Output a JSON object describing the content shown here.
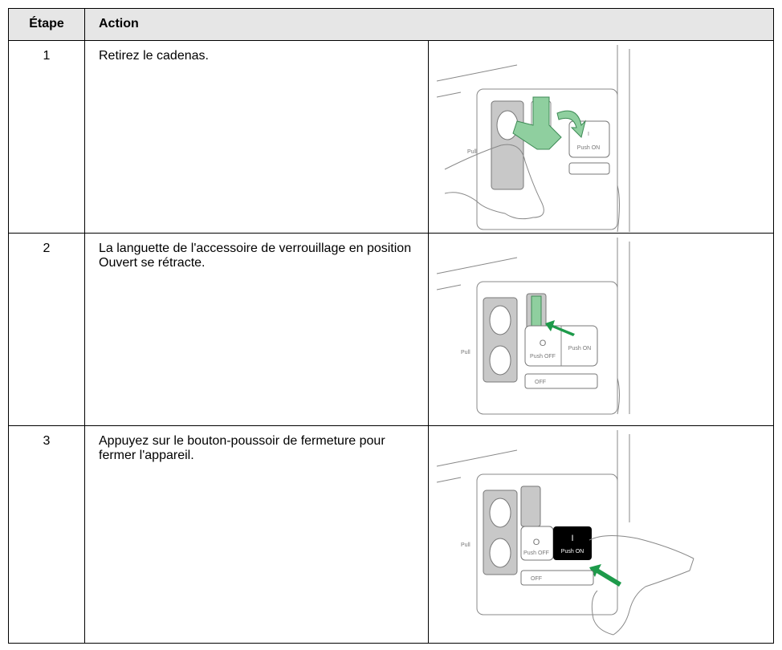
{
  "table": {
    "header": [
      "Étape",
      "Action"
    ],
    "rows": [
      [
        "1",
        "Retirez le cadenas."
      ],
      [
        "2",
        "La languette de l'accessoire de verrouillage en position Ouvert se rétracte."
      ],
      [
        "3",
        "Appuyez sur le bouton-poussoir de fermeture pour fermer l'appareil."
      ]
    ]
  },
  "illustrations": [
    {
      "labels": [
        "Pull",
        "I",
        "Push ON"
      ]
    },
    {
      "labels": [
        "Pull",
        "O",
        "Push OFF",
        "Push ON",
        "OFF"
      ]
    },
    {
      "labels": [
        "Pull",
        "O",
        "Push OFF",
        "I",
        "Push ON",
        "OFF"
      ]
    }
  ]
}
